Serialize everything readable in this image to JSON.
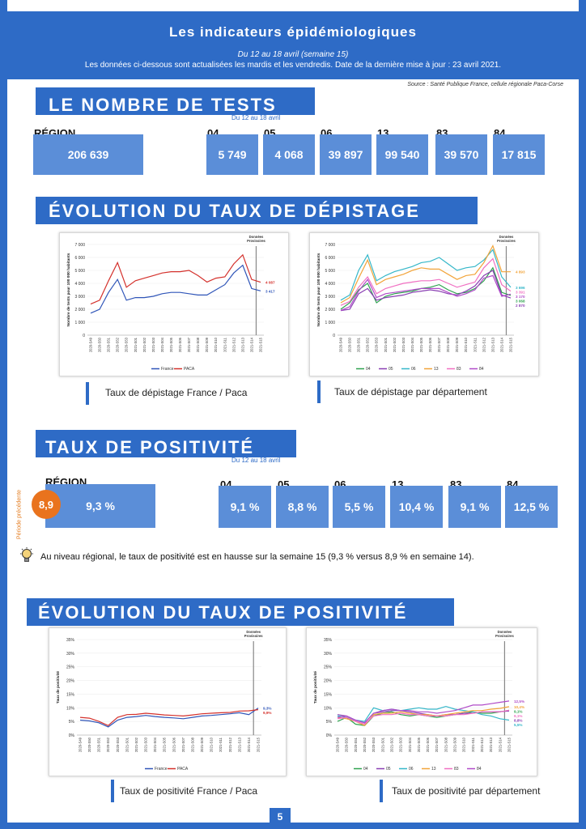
{
  "header": {
    "title": "Les indicateurs épidémiologiques",
    "period": "Du 12 au 18 avril (semaine 15)",
    "update_note": "Les données ci-dessous sont actualisées les mardis et les vendredis. Date de la dernière mise à jour : 23 avril 2021.",
    "source": "Source : Santé Publique France, cellule régionale Paca-Corse"
  },
  "tests": {
    "title": "LE NOMBRE DE TESTS",
    "period": "Du 12 au 18 avril",
    "region_label": "RÉGION",
    "region_value": "206 639",
    "departments": [
      {
        "code": "04",
        "value": "5 749"
      },
      {
        "code": "05",
        "value": "4 068"
      },
      {
        "code": "06",
        "value": "39 897"
      },
      {
        "code": "13",
        "value": "99 540"
      },
      {
        "code": "83",
        "value": "39 570"
      },
      {
        "code": "84",
        "value": "17 815"
      }
    ]
  },
  "screening": {
    "title": "ÉVOLUTION DU TAUX DE DÉPISTAGE",
    "caption_left": "Taux de dépistage France / Paca",
    "caption_right": "Taux de dépistage par département"
  },
  "positivity": {
    "title": "TAUX DE POSITIVITÉ",
    "period": "Du 12 au 18 avril",
    "previous_label": "Période précédente",
    "previous_value": "8,9",
    "region_label": "RÉGION",
    "region_value": "9,3 %",
    "departments": [
      {
        "code": "04",
        "value": "9,1 %"
      },
      {
        "code": "05",
        "value": "8,8 %"
      },
      {
        "code": "06",
        "value": "5,5 %"
      },
      {
        "code": "13",
        "value": "10,4 %"
      },
      {
        "code": "83",
        "value": "9,1 %"
      },
      {
        "code": "84",
        "value": "12,5 %"
      }
    ],
    "note": "Au niveau régional, le taux de positivité est en hausse sur la semaine 15 (9,3 % versus 8,9 % en semaine 14)."
  },
  "positivity_evolution": {
    "title": "ÉVOLUTION DU TAUX DE POSITIVITÉ",
    "caption_left": "Taux de positivité France / Paca",
    "caption_right": "Taux de positivité par département"
  },
  "page_number": "5",
  "colors": {
    "brand": "#2e6bc6",
    "box": "#5b8ed8",
    "previous": "#e9731e",
    "france": "#2f55b8",
    "paca": "#d4312c",
    "d04": "#2ea24f",
    "d05": "#8a3fb3",
    "d06": "#35b7c9",
    "d13": "#f2a43a",
    "d83": "#f06fc2",
    "d84": "#b04bc8"
  },
  "chart_data": [
    {
      "type": "line",
      "x": [
        "2020-S49",
        "2020-S50",
        "2020-S51",
        "2020-S52",
        "2020-S53",
        "2021-S01",
        "2021-S02",
        "2021-S03",
        "2021-S04",
        "2021-S05",
        "2021-S06",
        "2021-S07",
        "2021-S08",
        "2021-S09",
        "2021-S10",
        "2021-S11",
        "2021-S12",
        "2021-S13",
        "2021-S14",
        "2021-S15"
      ],
      "series": [
        {
          "name": "France",
          "values": [
            1700,
            2000,
            3300,
            4300,
            2700,
            2900,
            2900,
            3000,
            3200,
            3300,
            3300,
            3200,
            3100,
            3100,
            3500,
            3900,
            4800,
            5400,
            3600,
            3417
          ]
        },
        {
          "name": "PACA",
          "values": [
            2400,
            2700,
            4200,
            5600,
            3700,
            4200,
            4400,
            4600,
            4800,
            4900,
            4900,
            5000,
            4600,
            4100,
            4400,
            4500,
            5500,
            6200,
            4300,
            4087
          ]
        }
      ],
      "ylabel": "Nombre de tests pour 100 000 habitants",
      "ylim": [
        0,
        7000
      ],
      "yticks": [
        "0",
        "1 000",
        "2 000",
        "3 000",
        "4 000",
        "5 000",
        "6 000",
        "7 000"
      ],
      "end_labels": [
        "4 087",
        "3 417"
      ],
      "annotation": "Données Provisoires",
      "legend": "bottom"
    },
    {
      "type": "line",
      "x": [
        "2020-S49",
        "2020-S50",
        "2020-S51",
        "2020-S52",
        "2020-S53",
        "2021-S01",
        "2021-S02",
        "2021-S03",
        "2021-S04",
        "2021-S05",
        "2021-S06",
        "2021-S07",
        "2021-S08",
        "2021-S09",
        "2021-S10",
        "2021-S11",
        "2021-S12",
        "2021-S13",
        "2021-S14",
        "2021-S15"
      ],
      "series": [
        {
          "name": "04",
          "values": [
            2000,
            2500,
            3500,
            4000,
            2500,
            3000,
            3200,
            3300,
            3400,
            3600,
            3700,
            3900,
            3500,
            3200,
            3300,
            3600,
            4200,
            5200,
            3300,
            3068
          ]
        },
        {
          "name": "05",
          "values": [
            1900,
            2000,
            3200,
            3600,
            2700,
            2900,
            3000,
            3100,
            3300,
            3400,
            3500,
            3400,
            3200,
            3100,
            3400,
            3800,
            4600,
            5000,
            3100,
            2870
          ]
        },
        {
          "name": "06",
          "values": [
            2700,
            3100,
            5000,
            6200,
            4200,
            4600,
            4900,
            5100,
            5300,
            5600,
            5700,
            6000,
            5500,
            5000,
            5200,
            5300,
            5800,
            6600,
            4500,
            3696
          ]
        },
        {
          "name": "13",
          "values": [
            2500,
            2900,
            4400,
            5800,
            3900,
            4300,
            4500,
            4700,
            5000,
            5200,
            5100,
            5100,
            4700,
            4300,
            4600,
            4700,
            5600,
            6900,
            4900,
            4893
          ]
        },
        {
          "name": "83",
          "values": [
            2300,
            2600,
            3700,
            4500,
            3200,
            3600,
            3800,
            4000,
            4100,
            4200,
            4200,
            4300,
            4000,
            3700,
            3900,
            4100,
            5200,
            5900,
            3900,
            3391
          ]
        },
        {
          "name": "84",
          "values": [
            1900,
            2200,
            3400,
            4300,
            2900,
            3200,
            3300,
            3400,
            3500,
            3600,
            3600,
            3600,
            3300,
            3000,
            3200,
            3500,
            4400,
            4600,
            3000,
            3170
          ]
        }
      ],
      "ylabel": "Nombre de tests pour 100 000 habitants",
      "ylim": [
        0,
        7000
      ],
      "yticks": [
        "0",
        "1 000",
        "2 000",
        "3 000",
        "4 000",
        "5 000",
        "6 000",
        "7 000"
      ],
      "end_labels": [
        "4 893",
        "3 696",
        "3 391",
        "3 170",
        "3 068",
        "2 870"
      ],
      "annotation": "Données Provisoires",
      "legend": "bottom"
    },
    {
      "type": "line",
      "x": [
        "2020-S49",
        "2020-S50",
        "2020-S51",
        "2020-S52",
        "2020-S53",
        "2021-S01",
        "2021-S02",
        "2021-S03",
        "2021-S04",
        "2021-S05",
        "2021-S06",
        "2021-S07",
        "2021-S08",
        "2021-S09",
        "2021-S10",
        "2021-S11",
        "2021-S12",
        "2021-S13",
        "2021-S14",
        "2021-S15"
      ],
      "series": [
        {
          "name": "France",
          "values": [
            5.5,
            5.2,
            4.5,
            3.0,
            5.5,
            6.5,
            6.8,
            7.2,
            6.8,
            6.5,
            6.3,
            6.0,
            6.5,
            7.0,
            7.2,
            7.5,
            7.8,
            8.2,
            7.5,
            9.9
          ]
        },
        {
          "name": "PACA",
          "values": [
            6.5,
            6.2,
            5.0,
            3.5,
            6.5,
            7.5,
            7.6,
            8.0,
            7.7,
            7.4,
            7.2,
            7.0,
            7.4,
            7.8,
            8.0,
            8.2,
            8.3,
            8.8,
            8.9,
            9.3
          ]
        }
      ],
      "ylabel": "Taux de positivité",
      "ylim": [
        0,
        35
      ],
      "yticks": [
        "0%",
        "5%",
        "10%",
        "15%",
        "20%",
        "25%",
        "30%",
        "35%"
      ],
      "end_labels": [
        "9,3%",
        "9,9%"
      ],
      "annotation": "Données Provisoires",
      "legend": "bottom"
    },
    {
      "type": "line",
      "x": [
        "2020-S49",
        "2020-S50",
        "2020-S51",
        "2020-S52",
        "2020-S53",
        "2021-S01",
        "2021-S02",
        "2021-S03",
        "2021-S04",
        "2021-S05",
        "2021-S06",
        "2021-S07",
        "2021-S08",
        "2021-S09",
        "2021-S10",
        "2021-S11",
        "2021-S12",
        "2021-S13",
        "2021-S14",
        "2021-S15"
      ],
      "series": [
        {
          "name": "04",
          "values": [
            5.0,
            6.5,
            4.0,
            3.5,
            7.0,
            8.0,
            8.5,
            7.5,
            7.0,
            7.5,
            7.0,
            6.5,
            7.0,
            7.5,
            8.0,
            8.5,
            8.0,
            8.0,
            8.5,
            9.1
          ]
        },
        {
          "name": "05",
          "values": [
            7.5,
            7.0,
            5.5,
            4.5,
            8.0,
            8.5,
            9.0,
            9.0,
            8.5,
            8.0,
            7.5,
            7.0,
            7.5,
            7.5,
            8.0,
            8.0,
            8.5,
            8.5,
            8.6,
            8.8
          ]
        },
        {
          "name": "06",
          "values": [
            7.0,
            6.5,
            5.5,
            5.0,
            10.0,
            9.0,
            9.5,
            9.0,
            9.5,
            10.0,
            9.5,
            9.5,
            10.5,
            9.5,
            9.0,
            8.5,
            7.5,
            7.0,
            6.0,
            5.5
          ]
        },
        {
          "name": "13",
          "values": [
            6.5,
            6.0,
            5.0,
            3.5,
            7.5,
            8.0,
            8.0,
            8.5,
            8.0,
            7.5,
            7.5,
            7.0,
            7.5,
            8.0,
            8.5,
            9.0,
            9.0,
            9.5,
            9.8,
            10.4
          ]
        },
        {
          "name": "83",
          "values": [
            6.0,
            6.5,
            5.0,
            4.0,
            7.0,
            7.5,
            7.5,
            8.0,
            7.5,
            7.5,
            7.0,
            7.0,
            7.0,
            7.5,
            7.5,
            8.0,
            8.5,
            8.5,
            8.5,
            9.1
          ]
        },
        {
          "name": "84",
          "values": [
            6.5,
            7.0,
            5.5,
            4.5,
            8.0,
            9.0,
            9.5,
            9.0,
            9.0,
            8.5,
            8.5,
            8.0,
            8.5,
            9.0,
            10.0,
            11.0,
            11.0,
            11.5,
            12.0,
            12.5
          ]
        }
      ],
      "ylabel": "Taux de positivité",
      "ylim": [
        0,
        35
      ],
      "yticks": [
        "0%",
        "5%",
        "10%",
        "15%",
        "20%",
        "25%",
        "30%",
        "35%"
      ],
      "end_labels": [
        "12,5%",
        "10,4%",
        "9,1%",
        "9,1%",
        "8,8%",
        "5,5%"
      ],
      "annotation": "Données Provisoires",
      "legend": "bottom"
    }
  ]
}
